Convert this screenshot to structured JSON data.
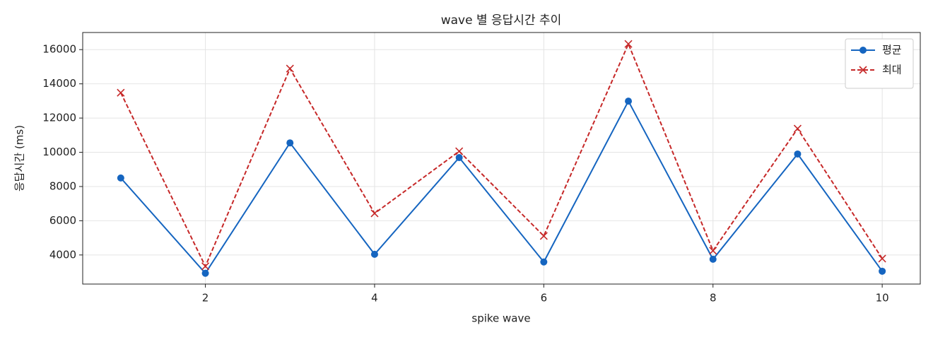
{
  "chart_data": {
    "type": "line",
    "title": "wave 별 응답시간 추이",
    "xlabel": "spike wave",
    "ylabel": "응답시간 (ms)",
    "x": [
      1,
      2,
      3,
      4,
      5,
      6,
      7,
      8,
      9,
      10
    ],
    "series": [
      {
        "name": "평균",
        "color": "#1565c0",
        "marker": "o",
        "linestyle": "solid",
        "values": [
          8500,
          2930,
          10550,
          4040,
          9690,
          3590,
          12990,
          3750,
          9900,
          3050
        ]
      },
      {
        "name": "최대",
        "color": "#c62828",
        "marker": "x",
        "linestyle": "dashed",
        "values": [
          13480,
          3340,
          14890,
          6430,
          10060,
          5110,
          16330,
          4250,
          11380,
          3790
        ]
      }
    ],
    "xlim": [
      0.55,
      10.45
    ],
    "xticks": [
      2,
      4,
      6,
      8,
      10
    ],
    "ylim": [
      2300,
      17000
    ],
    "yticks": [
      4000,
      6000,
      8000,
      10000,
      12000,
      14000,
      16000
    ],
    "grid": true,
    "legend": "upper right"
  }
}
